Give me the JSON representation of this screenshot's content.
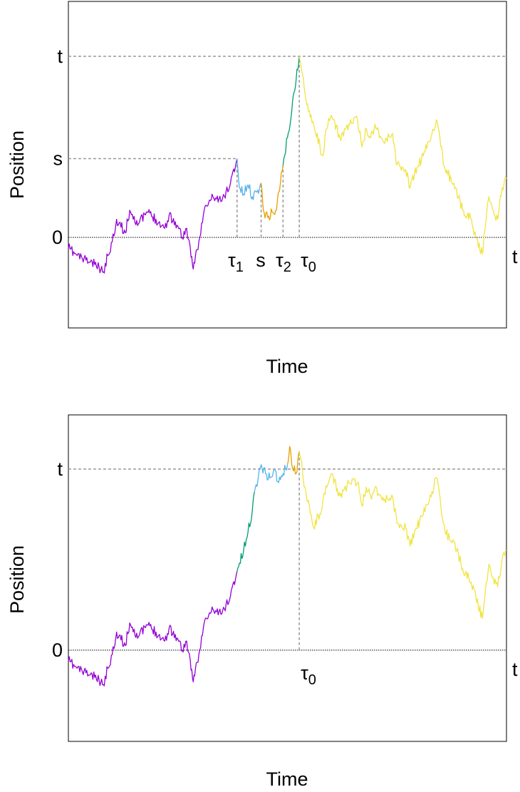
{
  "chart_data": [
    {
      "type": "line",
      "xlabel": "Time",
      "ylabel": "Position",
      "y_tick_labels": [
        "0",
        "s",
        "t"
      ],
      "x_marker_labels": [
        "τ",
        "s",
        "τ",
        "τ"
      ],
      "x_marker_subscripts": [
        "1",
        "",
        "2",
        "0"
      ],
      "x_end_label": "t",
      "reference_lines": [
        {
          "name": "t",
          "y": 2.0,
          "style": "dashed",
          "color": "#999999"
        },
        {
          "name": "s",
          "y": 0.87,
          "style": "dashed",
          "color": "#999999"
        },
        {
          "name": "0",
          "y": 0.0,
          "style": "dotted",
          "color": "#000000"
        }
      ],
      "marker_times": [
        0.385,
        0.44,
        0.49,
        0.527
      ],
      "xlim": [
        0,
        1
      ],
      "ylim": [
        -1.0,
        2.6
      ],
      "series": [
        {
          "color": "#9400D3",
          "values": [
            [
              0.0,
              -0.12
            ],
            [
              0.02,
              -0.2
            ],
            [
              0.04,
              -0.25
            ],
            [
              0.06,
              -0.3
            ],
            [
              0.08,
              -0.38
            ],
            [
              0.09,
              -0.2
            ],
            [
              0.1,
              -0.05
            ],
            [
              0.11,
              0.2
            ],
            [
              0.13,
              0.05
            ],
            [
              0.14,
              0.3
            ],
            [
              0.16,
              0.15
            ],
            [
              0.18,
              0.28
            ],
            [
              0.2,
              0.2
            ],
            [
              0.22,
              0.1
            ],
            [
              0.23,
              0.25
            ],
            [
              0.25,
              0.12
            ],
            [
              0.26,
              0.0
            ],
            [
              0.27,
              0.1
            ],
            [
              0.28,
              -0.22
            ],
            [
              0.285,
              -0.35
            ],
            [
              0.29,
              -0.2
            ],
            [
              0.3,
              0.0
            ],
            [
              0.31,
              0.3
            ],
            [
              0.33,
              0.45
            ],
            [
              0.35,
              0.4
            ],
            [
              0.37,
              0.6
            ],
            [
              0.385,
              0.87
            ]
          ]
        },
        {
          "color": "#56B4E9",
          "values": [
            [
              0.385,
              0.87
            ],
            [
              0.39,
              0.55
            ],
            [
              0.4,
              0.48
            ],
            [
              0.41,
              0.58
            ],
            [
              0.42,
              0.45
            ],
            [
              0.43,
              0.5
            ],
            [
              0.44,
              0.6
            ]
          ]
        },
        {
          "color": "#E69F00",
          "values": [
            [
              0.44,
              0.6
            ],
            [
              0.445,
              0.3
            ],
            [
              0.455,
              0.22
            ],
            [
              0.465,
              0.28
            ],
            [
              0.475,
              0.3
            ],
            [
              0.48,
              0.5
            ],
            [
              0.49,
              0.8
            ]
          ]
        },
        {
          "color": "#009E73",
          "values": [
            [
              0.49,
              0.8
            ],
            [
              0.5,
              1.1
            ],
            [
              0.51,
              1.4
            ],
            [
              0.515,
              1.6
            ],
            [
              0.52,
              1.75
            ],
            [
              0.527,
              2.0
            ]
          ]
        },
        {
          "color": "#F0E442",
          "values": [
            [
              0.527,
              2.0
            ],
            [
              0.54,
              1.6
            ],
            [
              0.55,
              1.4
            ],
            [
              0.56,
              1.25
            ],
            [
              0.58,
              0.9
            ],
            [
              0.59,
              1.2
            ],
            [
              0.6,
              1.35
            ],
            [
              0.62,
              1.1
            ],
            [
              0.64,
              1.25
            ],
            [
              0.66,
              1.3
            ],
            [
              0.67,
              1.0
            ],
            [
              0.68,
              1.2
            ],
            [
              0.69,
              1.1
            ],
            [
              0.7,
              1.25
            ],
            [
              0.72,
              1.05
            ],
            [
              0.74,
              1.15
            ],
            [
              0.75,
              0.8
            ],
            [
              0.77,
              0.75
            ],
            [
              0.78,
              0.55
            ],
            [
              0.79,
              0.7
            ],
            [
              0.81,
              0.9
            ],
            [
              0.83,
              1.15
            ],
            [
              0.84,
              1.3
            ],
            [
              0.85,
              1.0
            ],
            [
              0.86,
              0.75
            ],
            [
              0.88,
              0.6
            ],
            [
              0.9,
              0.3
            ],
            [
              0.92,
              0.2
            ],
            [
              0.93,
              0.0
            ],
            [
              0.945,
              -0.18
            ],
            [
              0.95,
              0.05
            ],
            [
              0.96,
              0.45
            ],
            [
              0.97,
              0.3
            ],
            [
              0.98,
              0.2
            ],
            [
              0.99,
              0.55
            ],
            [
              1.0,
              0.65
            ]
          ]
        }
      ]
    },
    {
      "type": "line",
      "xlabel": "Time",
      "ylabel": "Position",
      "y_tick_labels": [
        "0",
        "t"
      ],
      "x_marker_labels": [
        "τ"
      ],
      "x_marker_subscripts": [
        "0"
      ],
      "x_end_label": "t",
      "reference_lines": [
        {
          "name": "t",
          "y": 2.0,
          "style": "dashed",
          "color": "#999999"
        },
        {
          "name": "0",
          "y": 0.0,
          "style": "dotted",
          "color": "#000000"
        }
      ],
      "marker_times": [
        0.527
      ],
      "xlim": [
        0,
        1
      ],
      "ylim": [
        -1.0,
        2.6
      ],
      "series": [
        {
          "color": "#9400D3",
          "values": [
            [
              0.0,
              -0.12
            ],
            [
              0.02,
              -0.2
            ],
            [
              0.04,
              -0.25
            ],
            [
              0.06,
              -0.3
            ],
            [
              0.08,
              -0.38
            ],
            [
              0.09,
              -0.2
            ],
            [
              0.1,
              -0.05
            ],
            [
              0.11,
              0.2
            ],
            [
              0.13,
              0.05
            ],
            [
              0.14,
              0.3
            ],
            [
              0.16,
              0.15
            ],
            [
              0.18,
              0.28
            ],
            [
              0.2,
              0.2
            ],
            [
              0.22,
              0.1
            ],
            [
              0.23,
              0.25
            ],
            [
              0.25,
              0.12
            ],
            [
              0.26,
              0.0
            ],
            [
              0.27,
              0.1
            ],
            [
              0.28,
              -0.22
            ],
            [
              0.285,
              -0.35
            ],
            [
              0.29,
              -0.2
            ],
            [
              0.3,
              0.0
            ],
            [
              0.31,
              0.3
            ],
            [
              0.33,
              0.45
            ],
            [
              0.35,
              0.4
            ],
            [
              0.37,
              0.6
            ],
            [
              0.385,
              0.87
            ]
          ]
        },
        {
          "color": "#009E73",
          "values": [
            [
              0.385,
              0.87
            ],
            [
              0.4,
              1.1
            ],
            [
              0.41,
              1.3
            ],
            [
              0.42,
              1.55
            ],
            [
              0.425,
              1.75
            ]
          ]
        },
        {
          "color": "#56B4E9",
          "values": [
            [
              0.425,
              1.75
            ],
            [
              0.44,
              2.05
            ],
            [
              0.45,
              1.95
            ],
            [
              0.46,
              1.9
            ],
            [
              0.47,
              2.0
            ],
            [
              0.48,
              1.85
            ],
            [
              0.49,
              1.95
            ],
            [
              0.5,
              2.05
            ]
          ]
        },
        {
          "color": "#E69F00",
          "values": [
            [
              0.5,
              2.05
            ],
            [
              0.505,
              2.25
            ],
            [
              0.51,
              2.05
            ],
            [
              0.52,
              1.95
            ],
            [
              0.527,
              2.2
            ]
          ]
        },
        {
          "color": "#F0E442",
          "values": [
            [
              0.527,
              2.2
            ],
            [
              0.54,
              1.8
            ],
            [
              0.55,
              1.6
            ],
            [
              0.56,
              1.35
            ],
            [
              0.58,
              1.6
            ],
            [
              0.59,
              1.8
            ],
            [
              0.6,
              1.95
            ],
            [
              0.62,
              1.7
            ],
            [
              0.64,
              1.85
            ],
            [
              0.66,
              1.85
            ],
            [
              0.67,
              1.6
            ],
            [
              0.68,
              1.8
            ],
            [
              0.69,
              1.7
            ],
            [
              0.7,
              1.8
            ],
            [
              0.72,
              1.65
            ],
            [
              0.74,
              1.7
            ],
            [
              0.75,
              1.4
            ],
            [
              0.77,
              1.35
            ],
            [
              0.78,
              1.15
            ],
            [
              0.79,
              1.3
            ],
            [
              0.81,
              1.5
            ],
            [
              0.83,
              1.75
            ],
            [
              0.84,
              1.9
            ],
            [
              0.85,
              1.6
            ],
            [
              0.86,
              1.3
            ],
            [
              0.88,
              1.2
            ],
            [
              0.9,
              0.9
            ],
            [
              0.92,
              0.75
            ],
            [
              0.93,
              0.6
            ],
            [
              0.945,
              0.35
            ],
            [
              0.95,
              0.55
            ],
            [
              0.96,
              0.95
            ],
            [
              0.97,
              0.8
            ],
            [
              0.98,
              0.7
            ],
            [
              0.99,
              1.0
            ],
            [
              1.0,
              1.1
            ]
          ]
        }
      ]
    }
  ]
}
